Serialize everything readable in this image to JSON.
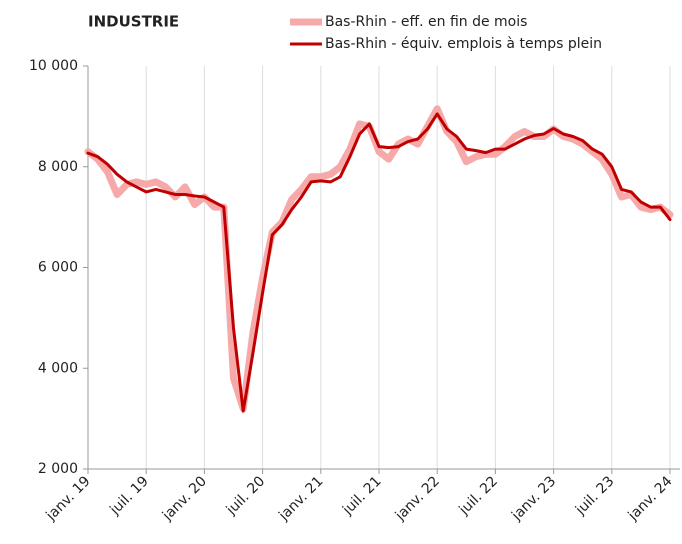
{
  "chart_data": {
    "type": "line",
    "title": "INDUSTRIE",
    "categories": [
      "janv. 19",
      null,
      null,
      null,
      null,
      null,
      "juil. 19",
      null,
      null,
      null,
      null,
      null,
      "janv. 20",
      null,
      null,
      null,
      null,
      null,
      "juil. 20",
      null,
      null,
      null,
      null,
      null,
      "janv. 21",
      null,
      null,
      null,
      null,
      null,
      "juil. 21",
      null,
      null,
      null,
      null,
      null,
      "janv. 22",
      null,
      null,
      null,
      null,
      null,
      "juil. 22",
      null,
      null,
      null,
      null,
      null,
      "janv. 23",
      null,
      null,
      null,
      null,
      null,
      "juil. 23",
      null,
      null,
      null,
      null,
      null,
      "janv. 24"
    ],
    "series": [
      {
        "name": "Bas-Rhin - eff. en fin de mois",
        "color": "#f7a9a9",
        "width": 7,
        "values": [
          8300,
          8150,
          7900,
          7450,
          7650,
          7700,
          7650,
          7700,
          7600,
          7400,
          7600,
          7250,
          7400,
          7200,
          7200,
          3800,
          3200,
          4700,
          5800,
          6700,
          6900,
          7350,
          7550,
          7800,
          7800,
          7850,
          8000,
          8350,
          8850,
          8800,
          8300,
          8150,
          8450,
          8550,
          8450,
          8800,
          9150,
          8700,
          8500,
          8100,
          8200,
          8250,
          8250,
          8400,
          8600,
          8700,
          8600,
          8600,
          8750,
          8600,
          8550,
          8450,
          8300,
          8150,
          7850,
          7400,
          7450,
          7200,
          7150,
          7200,
          7050
        ]
      },
      {
        "name": "Bas-Rhin - équiv. emplois à temps plein",
        "color": "#c00000",
        "width": 3,
        "values": [
          8270,
          8200,
          8050,
          7850,
          7700,
          7600,
          7500,
          7550,
          7500,
          7450,
          7450,
          7420,
          7400,
          7300,
          7200,
          4800,
          3150,
          4300,
          5500,
          6650,
          6850,
          7150,
          7400,
          7700,
          7720,
          7700,
          7800,
          8200,
          8650,
          8850,
          8400,
          8380,
          8400,
          8500,
          8550,
          8750,
          9050,
          8750,
          8600,
          8350,
          8320,
          8280,
          8350,
          8350,
          8450,
          8550,
          8620,
          8650,
          8760,
          8650,
          8600,
          8520,
          8350,
          8250,
          8000,
          7550,
          7500,
          7300,
          7200,
          7200,
          6950
        ]
      }
    ],
    "ylim": [
      2000,
      10000
    ],
    "yticks": [
      {
        "value": 2000,
        "label": "2 000"
      },
      {
        "value": 4000,
        "label": "4 000"
      },
      {
        "value": 6000,
        "label": "6 000"
      },
      {
        "value": 8000,
        "label": "8 000"
      },
      {
        "value": 10000,
        "label": "10 000"
      }
    ],
    "grid": "x"
  }
}
